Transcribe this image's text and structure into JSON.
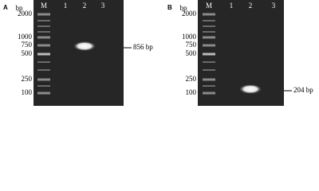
{
  "panels": [
    {
      "label": "A",
      "unit": "bp",
      "lanes": [
        "M",
        "1",
        "2",
        "3"
      ],
      "ladder": [
        "2000",
        "1000",
        "750",
        "500",
        "250",
        "100"
      ],
      "annotation": "856 bp"
    },
    {
      "label": "B",
      "unit": "bp",
      "lanes": [
        "M",
        "1",
        "2",
        "3"
      ],
      "ladder": [
        "2000",
        "1000",
        "750",
        "500",
        "250",
        "100"
      ],
      "annotation": "204 bp"
    }
  ]
}
